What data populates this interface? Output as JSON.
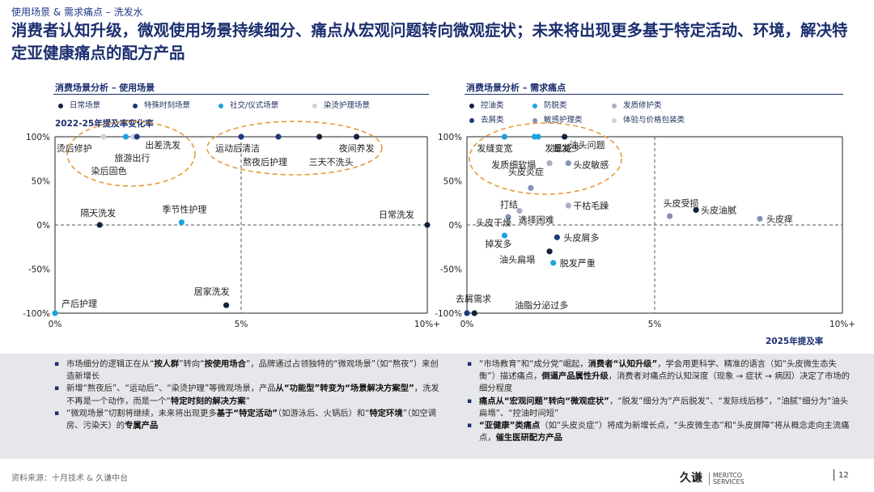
{
  "breadcrumb": "使用场景 & 需求痛点 – 洗发水",
  "headline": "消费者认知升级，微观使用场景持续细分、痛点从宏观问题转向微观症状；未来将出现更多基于特定活动、环境，解决特定亚健康痛点的配方产品",
  "colors": {
    "navy": "#1b2e6f",
    "dark": "#14213d",
    "cyan": "#1aa3e0",
    "gray": "#a8aec4",
    "light": "#cdd1dd",
    "mid": "#8391b4",
    "orange": "#e89a3c"
  },
  "left_chart": {
    "panel_title": "消费场景分析 – 使用场景",
    "ytitle": "2022-25年提及率变化率",
    "legend": [
      {
        "label": "日常场景",
        "color": "#14213d"
      },
      {
        "label": "特殊时刻场景",
        "color": "#1f3a7a"
      },
      {
        "label": "社交/仪式场景",
        "color": "#1aa3e0"
      },
      {
        "label": "染烫护理场景",
        "color": "#cdd1dd"
      }
    ]
  },
  "right_chart": {
    "panel_title": "消费场景分析 – 需求痛点",
    "xtitle": "2025年提及率",
    "legend": [
      {
        "label": "控油类",
        "color": "#14213d"
      },
      {
        "label": "防脱类",
        "color": "#1aa3e0"
      },
      {
        "label": "发质修护类",
        "color": "#a8aec4"
      },
      {
        "label": "去屑类",
        "color": "#1f3a7a"
      },
      {
        "label": "敏感护理类",
        "color": "#8391b4"
      },
      {
        "label": "体验与价格包装类",
        "color": "#cdd1dd"
      }
    ]
  },
  "chart_data": [
    {
      "type": "scatter",
      "title": "消费场景分析 – 使用场景",
      "xlabel": "",
      "ylabel": "2022-25年提及率变化率",
      "x_ticks": [
        "0%",
        "5%",
        "10%+"
      ],
      "y_ticks": [
        "100%",
        "50%",
        "0%",
        "-50%",
        "-100%"
      ],
      "xlim": [
        0,
        10
      ],
      "ylim": [
        -100,
        100
      ],
      "points": [
        {
          "label": "烫后修护",
          "x": 1.3,
          "y": 100,
          "series": "染烫护理场景",
          "color": "#cdd1dd"
        },
        {
          "label": "旅游出行",
          "x": 1.9,
          "y": 100,
          "series": "特殊时刻场景",
          "color": "#1aa3e0"
        },
        {
          "label": "染后固色",
          "x": 2.1,
          "y": 100,
          "series": "染烫护理场景",
          "color": "#cdd1dd"
        },
        {
          "label": "出差洗发",
          "x": 2.2,
          "y": 100,
          "series": "特殊时刻场景",
          "color": "#1f3a7a"
        },
        {
          "label": "运动后清洁",
          "x": 5.0,
          "y": 100,
          "series": "特殊时刻场景",
          "color": "#1f3a7a"
        },
        {
          "label": "熬夜后护理",
          "x": 6.0,
          "y": 100,
          "series": "特殊时刻场景",
          "color": "#1f3a7a"
        },
        {
          "label": "三天不洗头",
          "x": 7.1,
          "y": 100,
          "series": "日常场景",
          "color": "#14213d"
        },
        {
          "label": "夜间养发",
          "x": 8.1,
          "y": 100,
          "series": "日常场景",
          "color": "#14213d"
        },
        {
          "label": "隔天洗发",
          "x": 1.2,
          "y": 0,
          "series": "日常场景",
          "color": "#14213d"
        },
        {
          "label": "季节性护理",
          "x": 3.4,
          "y": 3,
          "series": "特殊时刻场景",
          "color": "#1aa3e0"
        },
        {
          "label": "日常洗发",
          "x": 10,
          "y": 0,
          "series": "日常场景",
          "color": "#14213d"
        },
        {
          "label": "居家洗发",
          "x": 4.6,
          "y": -91,
          "series": "日常场景",
          "color": "#14213d"
        },
        {
          "label": "产后护理",
          "x": 0,
          "y": -100,
          "series": "特殊时刻场景",
          "color": "#1aa3e0"
        }
      ]
    },
    {
      "type": "scatter",
      "title": "消费场景分析 – 需求痛点",
      "xlabel": "2025年提及率",
      "ylabel": "",
      "x_ticks": [
        "0%",
        "5%",
        "10%+"
      ],
      "y_ticks": [
        "100%",
        "50%",
        "0%",
        "-50%",
        "-100%"
      ],
      "xlim": [
        0,
        10
      ],
      "ylim": [
        -100,
        100
      ],
      "points": [
        {
          "label": "发缝变宽",
          "x": 1.0,
          "y": 100,
          "series": "防脱类",
          "color": "#1aa3e0"
        },
        {
          "label": "断发",
          "x": 1.8,
          "y": 100,
          "series": "防脱类",
          "color": "#1aa3e0"
        },
        {
          "label": "发量减少",
          "x": 1.9,
          "y": 100,
          "series": "防脱类",
          "color": "#1aa3e0"
        },
        {
          "label": "油头问题",
          "x": 2.6,
          "y": 100,
          "series": "控油类",
          "color": "#14213d"
        },
        {
          "label": "发质细软塌",
          "x": 2.2,
          "y": 70,
          "series": "发质修护类",
          "color": "#a8aec4"
        },
        {
          "label": "头皮敏感",
          "x": 2.7,
          "y": 70,
          "series": "敏感护理类",
          "color": "#8391b4"
        },
        {
          "label": "头皮炎症",
          "x": 1.7,
          "y": 42,
          "series": "敏感护理类",
          "color": "#8391b4"
        },
        {
          "label": "干枯毛躁",
          "x": 2.7,
          "y": 22,
          "series": "发质修护类",
          "color": "#a8aec4"
        },
        {
          "label": "打结",
          "x": 1.4,
          "y": 16,
          "series": "发质修护类",
          "color": "#a8aec4"
        },
        {
          "label": "头皮干燥",
          "x": 1.1,
          "y": 9,
          "series": "敏感护理类",
          "color": "#8391b4"
        },
        {
          "label": "选择困难",
          "x": 1.5,
          "y": 6,
          "series": "体验与价格包装类",
          "color": "#cdd1dd"
        },
        {
          "label": "掉发多",
          "x": 1.0,
          "y": -12,
          "series": "防脱类",
          "color": "#1aa3e0"
        },
        {
          "label": "头皮屑多",
          "x": 2.4,
          "y": -14,
          "series": "去屑类",
          "color": "#1f3a7a"
        },
        {
          "label": "油头扁塌",
          "x": 2.2,
          "y": -30,
          "series": "控油类",
          "color": "#14213d"
        },
        {
          "label": "脱发严重",
          "x": 2.3,
          "y": -43,
          "series": "防脱类",
          "color": "#1aa3e0"
        },
        {
          "label": "头皮受损",
          "x": 5.4,
          "y": 10,
          "series": "敏感护理类",
          "color": "#8391b4"
        },
        {
          "label": "头皮油腻",
          "x": 6.1,
          "y": 17,
          "series": "控油类",
          "color": "#14213d"
        },
        {
          "label": "头皮痒",
          "x": 7.8,
          "y": 7,
          "series": "敏感护理类",
          "color": "#8391b4"
        },
        {
          "label": "去屑需求",
          "x": 0,
          "y": -100,
          "series": "去屑类",
          "color": "#1f3a7a"
        },
        {
          "label": "油脂分泌过多",
          "x": 0.2,
          "y": -100,
          "series": "控油类",
          "color": "#14213d"
        }
      ]
    }
  ],
  "notes_left": [
    "市场细分的逻辑正在从“<b>按人群</b>”转向“<b>按使用场合</b>”，品牌通过占领独特的“微观场景”（如“熬夜”）来创造新增长",
    "新增“熬夜后”、“运动后”、“染烫护理”等微观场景，产品<b>从“功能型”转变为“场景解决方案型”</b>，洗发不再是一个动作，而是一个“<b>特定时刻的解决方案</b>”",
    "“微观场景”切割将继续，未来将出现更多<b>基于“特定活动”</b>（如游泳后、火锅后）和“<b>特定环境</b>”（如空调房、污染天）的<b>专属产品</b>"
  ],
  "notes_right": [
    "“市场教育”和“成分党”崛起，<b>消费者“认知升级”</b>，学会用更科学、精准的语言（如“头皮微生态失衡”）描述痛点，<b>倒逼产品属性升级</b>，消费者对痛点的认知深度（现象 → 症状 → 病因）决定了市场的细分程度",
    "<b>痛点从“宏观问题”转向“微观症状”</b>，“脱发”细分为“产后脱发”、“发际线后移”，“油腻”细分为“油头扁塌”、“控油时间短”",
    "<b>“亚健康”类痛点</b>（如“头皮炎症”）将成为新增长点，“头皮微生态”和“头皮屏障”将从概念走向主流痛点，<b>催生医研配方产品</b>"
  ],
  "footer": {
    "source": "资料来源：十月技术 & 久谦中台",
    "logo_cn": "久谦",
    "logo_en1": "MERITCO",
    "logo_en2": "SERVICES",
    "page": "12"
  }
}
